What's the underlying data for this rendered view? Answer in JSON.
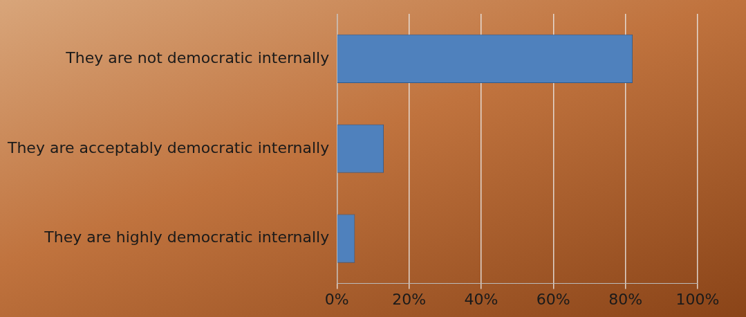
{
  "chart_data": {
    "type": "bar",
    "orientation": "horizontal",
    "categories": [
      "They are not democratic internally",
      "They are acceptably democratic internally",
      "They are highly democratic internally"
    ],
    "values": [
      82,
      13,
      5
    ],
    "color": "#4f81bd",
    "xlim": [
      0,
      100
    ],
    "xticks": [
      {
        "value": 0,
        "label": "0%"
      },
      {
        "value": 20,
        "label": "20%"
      },
      {
        "value": 40,
        "label": "40%"
      },
      {
        "value": 60,
        "label": "60%"
      },
      {
        "value": 80,
        "label": "80%"
      },
      {
        "value": 100,
        "label": "100%"
      }
    ],
    "grid": "x"
  }
}
